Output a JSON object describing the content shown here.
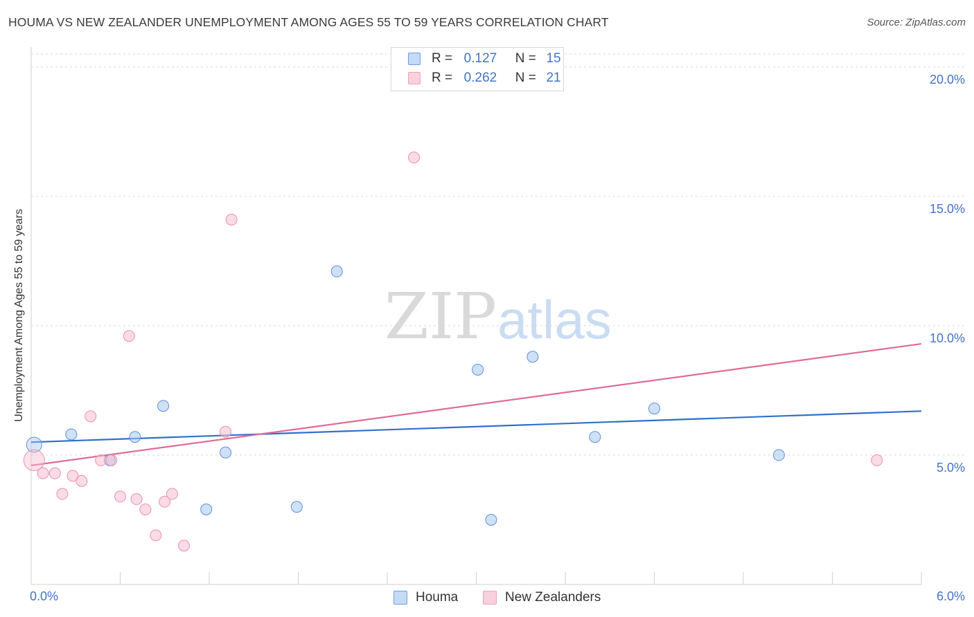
{
  "title": "HOUMA VS NEW ZEALANDER UNEMPLOYMENT AMONG AGES 55 TO 59 YEARS CORRELATION CHART",
  "source": "Source: ZipAtlas.com",
  "watermark": {
    "zip": "ZIP",
    "atlas": "atlas"
  },
  "legend": {
    "houma": {
      "r_label": "R =",
      "r_value": "0.127",
      "n_label": "N =",
      "n_value": "15"
    },
    "nz": {
      "r_label": "R =",
      "r_value": "0.262",
      "n_label": "N =",
      "n_value": "21"
    }
  },
  "colors": {
    "houma_fill": "#a8c8f0",
    "houma_stroke": "#5b8fd6",
    "houma_line": "#2f6fce",
    "nz_fill": "#f7bed0",
    "nz_stroke": "#e891ad",
    "nz_line": "#e06b95",
    "tick_text": "#4472c4",
    "grid": "#d9d9d9"
  },
  "chart_data": {
    "type": "scatter",
    "title": "HOUMA VS NEW ZEALANDER UNEMPLOYMENT AMONG AGES 55 TO 59 YEARS CORRELATION CHART",
    "xlabel": "",
    "ylabel": "Unemployment Among Ages 55 to 59 years",
    "xlim": [
      0.0,
      6.0
    ],
    "ylim": [
      0.0,
      20.5
    ],
    "x_tick_labels": [
      "0.0%",
      "6.0%"
    ],
    "y_ticks": [
      {
        "value": 5,
        "label": "5.0%"
      },
      {
        "value": 10,
        "label": "10.0%"
      },
      {
        "value": 15,
        "label": "15.0%"
      },
      {
        "value": 20,
        "label": "20.0%"
      }
    ],
    "legend_position": "top-center",
    "series": [
      {
        "name": "Houma",
        "r": 0.127,
        "n": 15,
        "points": [
          {
            "x": 0.02,
            "y": 5.4
          },
          {
            "x": 0.27,
            "y": 5.8
          },
          {
            "x": 0.53,
            "y": 4.8
          },
          {
            "x": 0.7,
            "y": 5.7
          },
          {
            "x": 0.89,
            "y": 6.9
          },
          {
            "x": 1.18,
            "y": 2.9
          },
          {
            "x": 1.31,
            "y": 5.1
          },
          {
            "x": 1.79,
            "y": 3.0
          },
          {
            "x": 2.06,
            "y": 12.1
          },
          {
            "x": 3.01,
            "y": 8.3
          },
          {
            "x": 3.1,
            "y": 2.5
          },
          {
            "x": 3.38,
            "y": 8.8
          },
          {
            "x": 3.8,
            "y": 5.7
          },
          {
            "x": 4.2,
            "y": 6.8
          },
          {
            "x": 5.04,
            "y": 5.0
          }
        ],
        "trend": {
          "x": [
            0.0,
            6.0
          ],
          "y": [
            5.5,
            6.7
          ]
        }
      },
      {
        "name": "New Zealanders",
        "r": 0.262,
        "n": 21,
        "points": [
          {
            "x": 0.02,
            "y": 4.8
          },
          {
            "x": 0.08,
            "y": 4.3
          },
          {
            "x": 0.16,
            "y": 4.3
          },
          {
            "x": 0.21,
            "y": 3.5
          },
          {
            "x": 0.28,
            "y": 4.2
          },
          {
            "x": 0.34,
            "y": 4.0
          },
          {
            "x": 0.4,
            "y": 6.5
          },
          {
            "x": 0.47,
            "y": 4.8
          },
          {
            "x": 0.54,
            "y": 4.8
          },
          {
            "x": 0.6,
            "y": 3.4
          },
          {
            "x": 0.66,
            "y": 9.6
          },
          {
            "x": 0.71,
            "y": 3.3
          },
          {
            "x": 0.77,
            "y": 2.9
          },
          {
            "x": 0.84,
            "y": 1.9
          },
          {
            "x": 0.9,
            "y": 3.2
          },
          {
            "x": 0.95,
            "y": 3.5
          },
          {
            "x": 1.03,
            "y": 1.5
          },
          {
            "x": 1.31,
            "y": 5.9
          },
          {
            "x": 1.35,
            "y": 14.1
          },
          {
            "x": 2.58,
            "y": 16.5
          },
          {
            "x": 5.7,
            "y": 4.8
          }
        ],
        "trend": {
          "x": [
            0.0,
            6.0
          ],
          "y": [
            4.6,
            9.3
          ]
        }
      }
    ]
  },
  "bottom_legend": {
    "houma": "Houma",
    "nz": "New Zealanders"
  }
}
